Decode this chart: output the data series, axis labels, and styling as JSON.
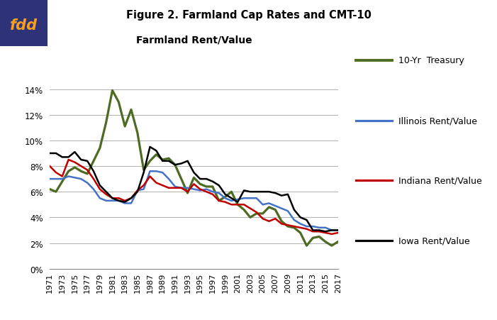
{
  "years": [
    1971,
    1972,
    1973,
    1974,
    1975,
    1976,
    1977,
    1978,
    1979,
    1980,
    1981,
    1982,
    1983,
    1984,
    1985,
    1986,
    1987,
    1988,
    1989,
    1990,
    1991,
    1992,
    1993,
    1994,
    1995,
    1996,
    1997,
    1998,
    1999,
    2000,
    2001,
    2002,
    2003,
    2004,
    2005,
    2006,
    2007,
    2008,
    2009,
    2010,
    2011,
    2012,
    2013,
    2014,
    2015,
    2016,
    2017
  ],
  "treasury": [
    6.2,
    6.0,
    6.8,
    7.6,
    7.9,
    7.6,
    7.4,
    8.4,
    9.4,
    11.4,
    13.9,
    13.0,
    11.1,
    12.4,
    10.6,
    7.7,
    8.4,
    8.9,
    8.5,
    8.6,
    8.1,
    7.0,
    5.9,
    7.1,
    6.6,
    6.4,
    6.4,
    5.3,
    5.6,
    6.0,
    5.0,
    4.6,
    4.0,
    4.3,
    4.3,
    4.8,
    4.6,
    3.7,
    3.3,
    3.2,
    2.8,
    1.8,
    2.4,
    2.5,
    2.1,
    1.8,
    2.1
  ],
  "illinois": [
    7.0,
    7.0,
    7.0,
    7.2,
    7.1,
    7.0,
    6.7,
    6.2,
    5.5,
    5.3,
    5.3,
    5.3,
    5.1,
    5.1,
    6.1,
    6.2,
    7.6,
    7.6,
    7.5,
    7.0,
    6.4,
    6.3,
    6.3,
    6.2,
    6.1,
    6.2,
    6.0,
    5.9,
    5.5,
    5.3,
    5.4,
    5.5,
    5.5,
    5.5,
    5.0,
    5.1,
    4.9,
    4.7,
    4.5,
    3.8,
    3.5,
    3.3,
    3.3,
    3.2,
    3.2,
    3.0,
    3.0
  ],
  "indiana": [
    8.0,
    7.5,
    7.2,
    8.5,
    8.3,
    8.0,
    7.7,
    7.0,
    6.2,
    5.8,
    5.5,
    5.5,
    5.3,
    5.5,
    6.1,
    6.5,
    7.2,
    6.7,
    6.5,
    6.3,
    6.3,
    6.3,
    6.0,
    6.6,
    6.2,
    6.0,
    5.8,
    5.3,
    5.2,
    5.0,
    5.0,
    5.0,
    4.7,
    4.4,
    3.9,
    3.7,
    3.9,
    3.5,
    3.4,
    3.3,
    3.2,
    3.1,
    2.9,
    2.9,
    2.8,
    2.7,
    2.8
  ],
  "iowa": [
    9.0,
    9.0,
    8.7,
    8.7,
    9.1,
    8.5,
    8.4,
    7.6,
    6.5,
    6.0,
    5.5,
    5.3,
    5.2,
    5.5,
    6.0,
    7.5,
    9.5,
    9.2,
    8.4,
    8.4,
    8.1,
    8.2,
    8.4,
    7.5,
    7.0,
    7.0,
    6.8,
    6.5,
    5.8,
    5.5,
    5.2,
    6.1,
    6.0,
    6.0,
    6.0,
    6.0,
    5.9,
    5.7,
    5.8,
    4.6,
    4.0,
    3.8,
    3.0,
    3.0,
    2.9,
    3.0,
    3.0
  ],
  "title": "Figure 2. Farmland Cap Rates and CMT-10",
  "subtitle": "Farmland Rent/Value",
  "treasury_color": "#4d6b23",
  "illinois_color": "#4472c4",
  "indiana_color": "#c00000",
  "iowa_color": "#000000",
  "background_color": "#ffffff",
  "grid_color": "#b0b0b0",
  "ylim": [
    0,
    0.15
  ],
  "yticks": [
    0,
    0.02,
    0.04,
    0.06,
    0.08,
    0.1,
    0.12,
    0.14
  ],
  "fdd_bg": "#2e3278",
  "fdd_text": "#f5a020",
  "legend_labels": [
    "10-Yr  Treasury",
    "Illinois Rent/Value",
    "Indiana Rent/Value",
    "Iowa Rent/Value"
  ]
}
